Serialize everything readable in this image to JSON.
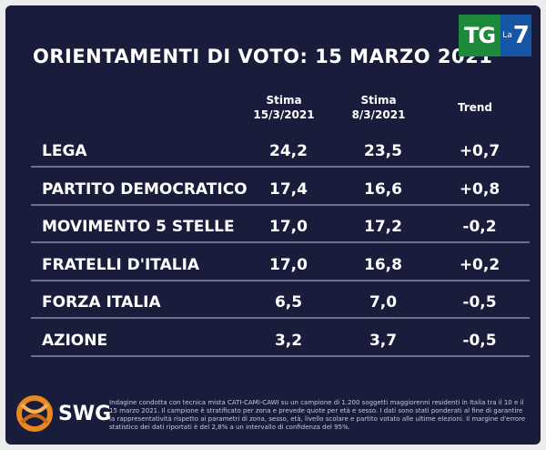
{
  "header": {
    "title": "ORIENTAMENTI DI VOTO: 15 MARZO 2021",
    "broadcaster_logo": {
      "tg": "TG",
      "la": "La",
      "seven": "7"
    }
  },
  "table": {
    "col1_line1": "Stima",
    "col1_line2": "15/3/2021",
    "col2_line1": "Stima",
    "col2_line2": "8/3/2021",
    "col3": "Trend"
  },
  "chart_data": {
    "type": "table",
    "title": "ORIENTAMENTI DI VOTO: 15 MARZO 2021",
    "columns": [
      "Stima 15/3/2021",
      "Stima 8/3/2021",
      "Trend"
    ],
    "rows": [
      {
        "party": "LEGA",
        "stima_15_3": "24,2",
        "stima_8_3": "23,5",
        "trend": "+0,7"
      },
      {
        "party": "PARTITO DEMOCRATICO",
        "stima_15_3": "17,4",
        "stima_8_3": "16,6",
        "trend": "+0,8"
      },
      {
        "party": "MOVIMENTO 5 STELLE",
        "stima_15_3": "17,0",
        "stima_8_3": "17,2",
        "trend": "-0,2"
      },
      {
        "party": "FRATELLI D'ITALIA",
        "stima_15_3": "17,0",
        "stima_8_3": "16,8",
        "trend": "+0,2"
      },
      {
        "party": "FORZA ITALIA",
        "stima_15_3": "6,5",
        "stima_8_3": "7,0",
        "trend": "-0,5"
      },
      {
        "party": "AZIONE",
        "stima_15_3": "3,2",
        "stima_8_3": "3,7",
        "trend": "-0,5"
      }
    ]
  },
  "footer": {
    "logo_text": "SWG",
    "note": "Indagine condotta con tecnica mista CATI-CAMI-CAWI su un campione di 1.200 soggetti maggiorenni residenti in Italia tra il 10 e il 15 marzo 2021. Il campione è stratificato per zona e prevede quote per età e sesso. I dati sono stati ponderati al fine di garantire la rappresentatività rispetto ai parametri di zona, sesso, età, livello scolare e partito votato alle ultime elezioni. Il margine d'errore statistico dei dati riportati è del 2,8% a un intervallo di confidenza del 95%."
  },
  "colors": {
    "background": "#1a1c3c",
    "tg_green": "#1c8a3a",
    "la7_blue": "#1556a6",
    "swg_orange": "#e8891c"
  }
}
